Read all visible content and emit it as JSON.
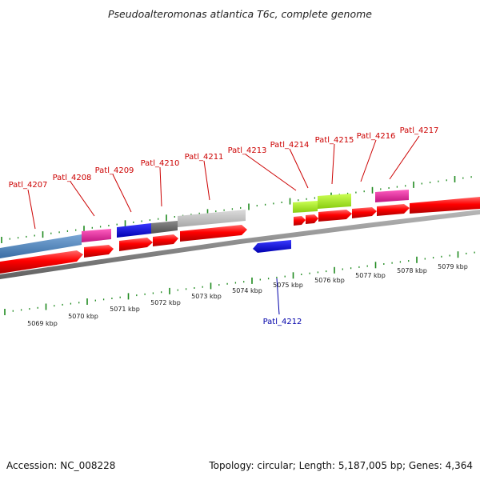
{
  "title": "Pseudoalteromonas atlantica T6c, complete genome",
  "footer": {
    "accession": "Accession: NC_008228",
    "summary": "Topology: circular; Length: 5,187,005 bp; Genes: 4,364"
  },
  "colors": {
    "label_forward": "#cc0000",
    "label_reverse": "#0000aa",
    "cds": "#ff0000",
    "backbone": "#888888",
    "tick": "#1f8a1f"
  },
  "scale": {
    "unit": "kbp",
    "labels": [
      "5069 kbp",
      "5070 kbp",
      "5071 kbp",
      "5072 kbp",
      "5073 kbp",
      "5074 kbp",
      "5075 kbp",
      "5076 kbp",
      "5077 kbp",
      "5078 kbp",
      "5079 kbp"
    ]
  },
  "genes": [
    {
      "id": "Patl_4207",
      "strand": "+"
    },
    {
      "id": "Patl_4208",
      "strand": "+"
    },
    {
      "id": "Patl_4209",
      "strand": "+"
    },
    {
      "id": "Patl_4210",
      "strand": "+"
    },
    {
      "id": "Patl_4211",
      "strand": "+"
    },
    {
      "id": "Patl_4212",
      "strand": "-"
    },
    {
      "id": "Patl_4213",
      "strand": "+"
    },
    {
      "id": "Patl_4214",
      "strand": "+"
    },
    {
      "id": "Patl_4215",
      "strand": "+"
    },
    {
      "id": "Patl_4216",
      "strand": "+"
    },
    {
      "id": "Patl_4217",
      "strand": "+"
    }
  ],
  "feature_colors": [
    "#4a7fb5",
    "#e0229a",
    "#1010d0",
    "#6e6e6e",
    "#c0c0c0",
    "#aaee22",
    "#e0229a"
  ]
}
